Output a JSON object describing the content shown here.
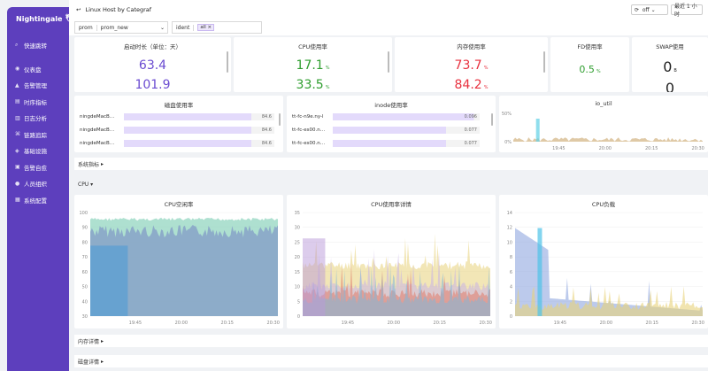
{
  "app": {
    "logo": "Nightingale"
  },
  "sidebar": {
    "items": [
      {
        "label": "快速跳转",
        "icon": "search-icon"
      },
      {
        "label": "仪表盘",
        "icon": "dashboard-icon"
      },
      {
        "label": "告警管理",
        "icon": "bell-icon"
      },
      {
        "label": "时序指标",
        "icon": "chart-icon"
      },
      {
        "label": "日志分析",
        "icon": "log-icon"
      },
      {
        "label": "链路追踪",
        "icon": "trace-icon"
      },
      {
        "label": "基础设施",
        "icon": "server-icon"
      },
      {
        "label": "告警自愈",
        "icon": "heal-icon"
      },
      {
        "label": "人员组织",
        "icon": "user-icon"
      },
      {
        "label": "系统配置",
        "icon": "settings-icon"
      }
    ]
  },
  "header": {
    "title": "Linux Host by Categraf",
    "refresh": "off",
    "time_range": "最近 1 小时"
  },
  "filters": {
    "datasource_label": "prom",
    "datasource_value": "prom_new",
    "ident_label": "ident",
    "ident_tag": "all"
  },
  "stats": {
    "uptime": {
      "title": "启动时长（单位：天）",
      "v1": "63.4",
      "v2": "101.9"
    },
    "cpu": {
      "title": "CPU使用率",
      "v1": "17.1",
      "v2": "33.5",
      "unit": "%"
    },
    "mem": {
      "title": "内存使用率",
      "v1": "73.7",
      "v2": "84.2",
      "unit": "%"
    },
    "fd": {
      "title": "FD使用率",
      "v1": "0.5",
      "unit": "%"
    },
    "swap": {
      "title": "SWAP使用",
      "v1": "0",
      "v2": "0",
      "unit": "B"
    }
  },
  "disk": {
    "title": "磁盘使用率",
    "rows": [
      {
        "name": "ningdeMacB…",
        "value": "84.6",
        "frac": 0.846
      },
      {
        "name": "ningdeMacB…",
        "value": "84.6",
        "frac": 0.846
      },
      {
        "name": "ningdeMacB…",
        "value": "84.6",
        "frac": 0.846
      }
    ]
  },
  "inode": {
    "title": "inode使用率",
    "rows": [
      {
        "name": "tt-fc-n9e.ny-l",
        "value": "0.096",
        "frac": 0.96
      },
      {
        "name": "tt-fc-es00.n…",
        "value": "0.077",
        "frac": 0.77
      },
      {
        "name": "tt-fc-es00.n…",
        "value": "0.077",
        "frac": 0.77
      }
    ]
  },
  "ioutil": {
    "title": "io_util",
    "yticks": [
      "50%",
      "0%"
    ],
    "xticks": [
      "19:45",
      "20:00",
      "20:15",
      "20:30"
    ]
  },
  "sections": {
    "system": "系统指标",
    "cpu": "CPU",
    "mem": "内存详情",
    "disk": "磁盘详情"
  },
  "chart_data": [
    {
      "type": "area",
      "title": "CPU空闲率",
      "ylim": [
        30,
        100
      ],
      "yticks": [
        "100",
        "90",
        "80",
        "70",
        "60",
        "50",
        "40",
        "30"
      ],
      "xticks": [
        "19:45",
        "20:00",
        "20:15",
        "20:30"
      ]
    },
    {
      "type": "area",
      "title": "CPU使用率详情",
      "ylim": [
        0,
        35
      ],
      "yticks": [
        "35",
        "30",
        "25",
        "20",
        "15",
        "10",
        "5",
        "0"
      ],
      "xticks": [
        "19:45",
        "20:00",
        "20:15",
        "20:30"
      ]
    },
    {
      "type": "area",
      "title": "CPU负载",
      "ylim": [
        0,
        14
      ],
      "yticks": [
        "14",
        "12",
        "10",
        "8",
        "6",
        "4",
        "2",
        "0"
      ],
      "xticks": [
        "19:45",
        "20:00",
        "20:15",
        "20:30"
      ]
    }
  ],
  "colors": {
    "sidebar": "#5d3fbd",
    "green": "#2f9e2f",
    "red": "#e8313f",
    "purple": "#6a4bd1"
  }
}
